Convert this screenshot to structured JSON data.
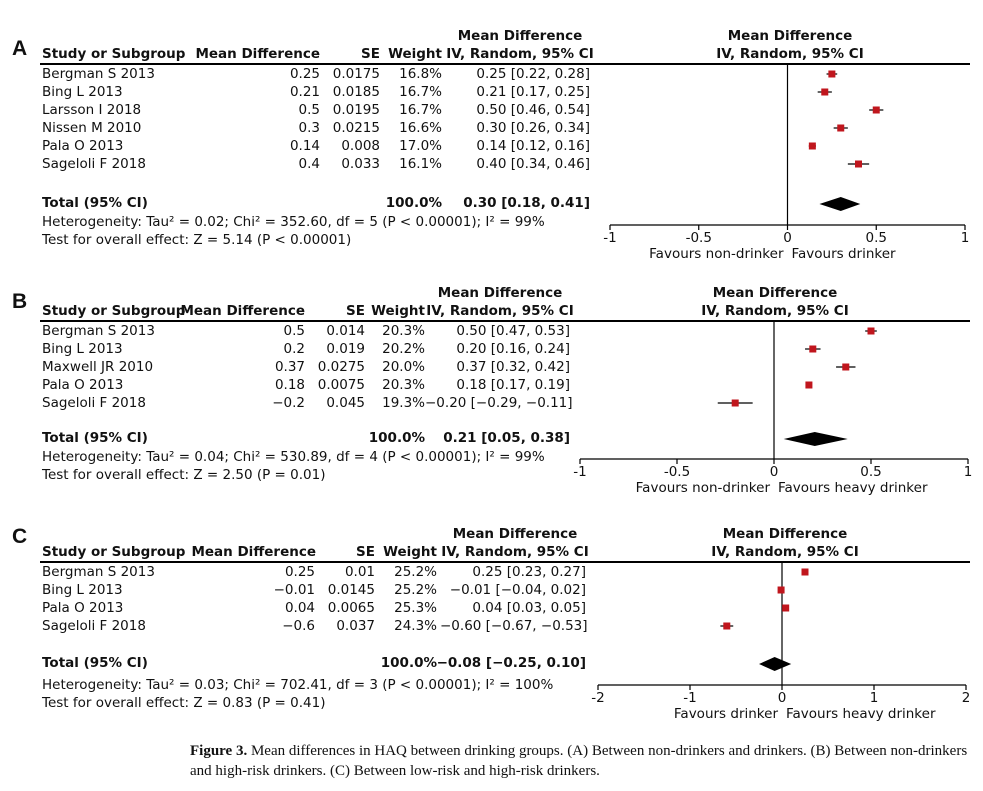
{
  "caption": {
    "label": "Figure 3.",
    "text": "Mean differences in HAQ between drinking groups. (A) Between non-drinkers and drinkers. (B) Between non-drinkers and high-risk drinkers. (C) Between low-risk and high-risk drinkers."
  },
  "chart_data": [
    {
      "type": "forest",
      "panel": "A",
      "headers": {
        "study": "Study or Subgroup",
        "md": "Mean Difference",
        "se": "SE",
        "weight": "Weight",
        "ci_top": "Mean Difference",
        "ci_bottom": "IV, Random, 95% CI",
        "plot_top": "Mean Difference",
        "plot_bottom": "IV, Random, 95% CI"
      },
      "rows": [
        {
          "study": "Bergman S 2013",
          "md": "0.25",
          "se": "0.0175",
          "weight": "16.8%",
          "ci": "0.25 [0.22, 0.28]",
          "est": 0.25,
          "lo": 0.22,
          "hi": 0.28
        },
        {
          "study": "Bing L 2013",
          "md": "0.21",
          "se": "0.0185",
          "weight": "16.7%",
          "ci": "0.21 [0.17, 0.25]",
          "est": 0.21,
          "lo": 0.17,
          "hi": 0.25
        },
        {
          "study": "Larsson I 2018",
          "md": "0.5",
          "se": "0.0195",
          "weight": "16.7%",
          "ci": "0.50 [0.46, 0.54]",
          "est": 0.5,
          "lo": 0.46,
          "hi": 0.54
        },
        {
          "study": "Nissen M 2010",
          "md": "0.3",
          "se": "0.0215",
          "weight": "16.6%",
          "ci": "0.30 [0.26, 0.34]",
          "est": 0.3,
          "lo": 0.26,
          "hi": 0.34
        },
        {
          "study": "Pala O 2013",
          "md": "0.14",
          "se": "0.008",
          "weight": "17.0%",
          "ci": "0.14 [0.12, 0.16]",
          "est": 0.14,
          "lo": 0.12,
          "hi": 0.16
        },
        {
          "study": "Sageloli F 2018",
          "md": "0.4",
          "se": "0.033",
          "weight": "16.1%",
          "ci": "0.40 [0.34, 0.46]",
          "est": 0.4,
          "lo": 0.34,
          "hi": 0.46
        }
      ],
      "total": {
        "label": "Total (95% CI)",
        "weight": "100.0%",
        "ci": "0.30 [0.18, 0.41]",
        "est": 0.3,
        "lo": 0.18,
        "hi": 0.41
      },
      "heterogeneity": "Heterogeneity: Tau² = 0.02; Chi² = 352.60, df = 5 (P < 0.00001); I² = 99%",
      "overall": "Test for overall effect: Z = 5.14 (P < 0.00001)",
      "xlim": [
        -1,
        1
      ],
      "ticks": [
        -1,
        -0.5,
        0,
        0.5,
        1
      ],
      "tick_labels": [
        "-1",
        "-0.5",
        "0",
        "0.5",
        "1"
      ],
      "favours_left": "Favours non-drinker",
      "favours_right": "Favours drinker",
      "marker_color": "#c0161d"
    },
    {
      "type": "forest",
      "panel": "B",
      "headers": {
        "study": "Study or Subgroup",
        "md": "Mean Difference",
        "se": "SE",
        "weight": "Weight",
        "ci_top": "Mean Difference",
        "ci_bottom": "IV, Random, 95% CI",
        "plot_top": "Mean Difference",
        "plot_bottom": "IV, Random, 95% CI"
      },
      "rows": [
        {
          "study": "Bergman S 2013",
          "md": "0.5",
          "se": "0.014",
          "weight": "20.3%",
          "ci": "0.50 [0.47, 0.53]",
          "est": 0.5,
          "lo": 0.47,
          "hi": 0.53
        },
        {
          "study": "Bing L 2013",
          "md": "0.2",
          "se": "0.019",
          "weight": "20.2%",
          "ci": "0.20 [0.16, 0.24]",
          "est": 0.2,
          "lo": 0.16,
          "hi": 0.24
        },
        {
          "study": "Maxwell JR 2010",
          "md": "0.37",
          "se": "0.0275",
          "weight": "20.0%",
          "ci": "0.37 [0.32, 0.42]",
          "est": 0.37,
          "lo": 0.32,
          "hi": 0.42
        },
        {
          "study": "Pala O 2013",
          "md": "0.18",
          "se": "0.0075",
          "weight": "20.3%",
          "ci": "0.18 [0.17, 0.19]",
          "est": 0.18,
          "lo": 0.17,
          "hi": 0.19
        },
        {
          "study": "Sageloli F 2018",
          "md": "−0.2",
          "se": "0.045",
          "weight": "19.3%",
          "ci": "−0.20 [−0.29, −0.11]",
          "est": -0.2,
          "lo": -0.29,
          "hi": -0.11
        }
      ],
      "total": {
        "label": "Total (95% CI)",
        "weight": "100.0%",
        "ci": "0.21 [0.05, 0.38]",
        "est": 0.21,
        "lo": 0.05,
        "hi": 0.38
      },
      "heterogeneity": "Heterogeneity: Tau² = 0.04; Chi² = 530.89, df = 4 (P < 0.00001); I² = 99%",
      "overall": "Test for overall effect: Z = 2.50 (P = 0.01)",
      "xlim": [
        -1,
        1
      ],
      "ticks": [
        -1,
        -0.5,
        0,
        0.5,
        1
      ],
      "tick_labels": [
        "-1",
        "-0.5",
        "0",
        "0.5",
        "1"
      ],
      "favours_left": "Favours non-drinker",
      "favours_right": "Favours heavy drinker",
      "marker_color": "#c0161d"
    },
    {
      "type": "forest",
      "panel": "C",
      "headers": {
        "study": "Study or Subgroup",
        "md": "Mean Difference",
        "se": "SE",
        "weight": "Weight",
        "ci_top": "Mean Difference",
        "ci_bottom": "IV, Random, 95% CI",
        "plot_top": "Mean Difference",
        "plot_bottom": "IV, Random, 95% CI"
      },
      "rows": [
        {
          "study": "Bergman S 2013",
          "md": "0.25",
          "se": "0.01",
          "weight": "25.2%",
          "ci": "0.25 [0.23, 0.27]",
          "est": 0.25,
          "lo": 0.23,
          "hi": 0.27
        },
        {
          "study": "Bing L 2013",
          "md": "−0.01",
          "se": "0.0145",
          "weight": "25.2%",
          "ci": "−0.01 [−0.04, 0.02]",
          "est": -0.01,
          "lo": -0.04,
          "hi": 0.02
        },
        {
          "study": "Pala O 2013",
          "md": "0.04",
          "se": "0.0065",
          "weight": "25.3%",
          "ci": "0.04 [0.03, 0.05]",
          "est": 0.04,
          "lo": 0.03,
          "hi": 0.05
        },
        {
          "study": "Sageloli F 2018",
          "md": "−0.6",
          "se": "0.037",
          "weight": "24.3%",
          "ci": "−0.60 [−0.67, −0.53]",
          "est": -0.6,
          "lo": -0.67,
          "hi": -0.53
        }
      ],
      "total": {
        "label": "Total (95% CI)",
        "weight": "100.0%",
        "ci": "−0.08 [−0.25, 0.10]",
        "est": -0.08,
        "lo": -0.25,
        "hi": 0.1
      },
      "heterogeneity": "Heterogeneity: Tau² = 0.03; Chi² = 702.41, df = 3 (P < 0.00001); I² = 100%",
      "overall": "Test for overall effect: Z = 0.83 (P = 0.41)",
      "xlim": [
        -2,
        2
      ],
      "ticks": [
        -2,
        -1,
        0,
        1,
        2
      ],
      "tick_labels": [
        "-2",
        "-1",
        "0",
        "1",
        "2"
      ],
      "favours_left": "Favours drinker",
      "favours_right": "Favours heavy drinker",
      "marker_color": "#c0161d"
    }
  ]
}
